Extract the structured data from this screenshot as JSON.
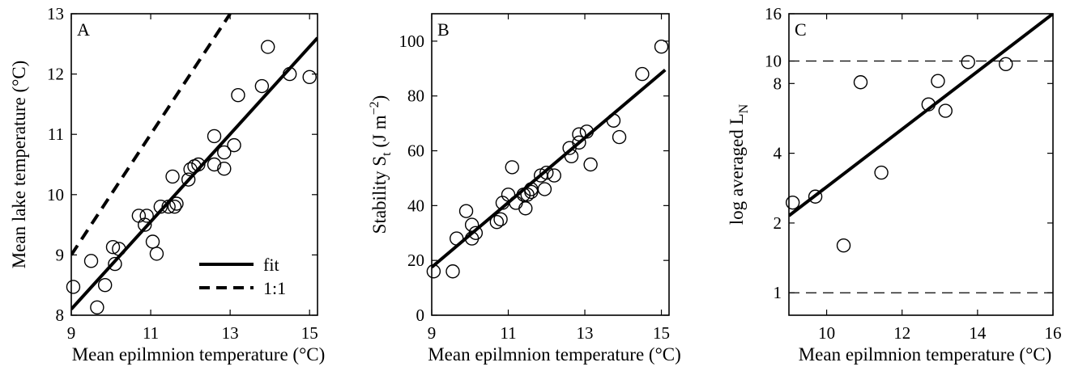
{
  "colors": {
    "ink": "#000000",
    "background": "#ffffff"
  },
  "chart_data": [
    {
      "panel": "A",
      "type": "scatter",
      "xlabel": "Mean epilmnion temperature (°C)",
      "ylabel": "Mean lake temperature (°C)",
      "xlim": [
        9,
        15.2
      ],
      "ylim": [
        8,
        13
      ],
      "xticks": [
        9,
        11,
        13,
        15
      ],
      "yticks": [
        8,
        9,
        10,
        11,
        12,
        13
      ],
      "grid": false,
      "legend": {
        "position": "bottom-right",
        "entries": [
          {
            "label": "fit",
            "style": "solid"
          },
          {
            "label": "1:1",
            "style": "dashed"
          }
        ]
      },
      "points": [
        [
          9.05,
          8.47
        ],
        [
          9.5,
          8.9
        ],
        [
          9.65,
          8.13
        ],
        [
          9.85,
          8.5
        ],
        [
          10.05,
          9.13
        ],
        [
          10.1,
          8.85
        ],
        [
          10.2,
          9.1
        ],
        [
          10.7,
          9.65
        ],
        [
          10.85,
          9.5
        ],
        [
          10.9,
          9.65
        ],
        [
          11.05,
          9.22
        ],
        [
          11.15,
          9.02
        ],
        [
          11.25,
          9.8
        ],
        [
          11.45,
          9.8
        ],
        [
          11.55,
          10.3
        ],
        [
          11.6,
          9.8
        ],
        [
          11.65,
          9.85
        ],
        [
          11.95,
          10.25
        ],
        [
          12.0,
          10.42
        ],
        [
          12.1,
          10.47
        ],
        [
          12.2,
          10.5
        ],
        [
          12.6,
          10.97
        ],
        [
          12.6,
          10.5
        ],
        [
          12.85,
          10.7
        ],
        [
          12.85,
          10.43
        ],
        [
          13.1,
          10.82
        ],
        [
          13.2,
          11.65
        ],
        [
          13.8,
          11.8
        ],
        [
          13.95,
          12.45
        ],
        [
          14.5,
          12.0
        ],
        [
          15.0,
          11.95
        ]
      ],
      "lines": [
        {
          "name": "fit",
          "style": "solid",
          "x": [
            9.0,
            15.2
          ],
          "y": [
            8.1,
            12.6
          ]
        },
        {
          "name": "1:1",
          "style": "dashed",
          "x": [
            9.0,
            13.0
          ],
          "y": [
            9.0,
            13.0
          ]
        }
      ]
    },
    {
      "panel": "B",
      "type": "scatter",
      "xlabel": "Mean epilmnion temperature (°C)",
      "ylabel_parts": {
        "main": "Stability S",
        "sub": "t",
        "unit_open": " (J m",
        "sup": "−2",
        "unit_close": ")"
      },
      "xlim": [
        9,
        15.2
      ],
      "ylim": [
        0,
        110
      ],
      "xticks": [
        9,
        11,
        13,
        15
      ],
      "yticks": [
        0,
        20,
        40,
        60,
        80,
        100
      ],
      "grid": false,
      "points": [
        [
          9.05,
          16
        ],
        [
          9.55,
          16
        ],
        [
          9.65,
          28
        ],
        [
          9.9,
          38
        ],
        [
          10.05,
          33
        ],
        [
          10.05,
          28
        ],
        [
          10.15,
          30
        ],
        [
          10.7,
          34
        ],
        [
          10.8,
          35
        ],
        [
          10.85,
          41
        ],
        [
          11.0,
          44
        ],
        [
          11.1,
          54
        ],
        [
          11.2,
          41
        ],
        [
          11.4,
          44
        ],
        [
          11.45,
          39
        ],
        [
          11.5,
          44
        ],
        [
          11.6,
          46
        ],
        [
          11.6,
          45
        ],
        [
          11.85,
          51
        ],
        [
          11.95,
          46
        ],
        [
          12.0,
          52
        ],
        [
          12.2,
          51
        ],
        [
          12.6,
          61
        ],
        [
          12.65,
          58
        ],
        [
          12.85,
          63
        ],
        [
          12.85,
          66
        ],
        [
          13.05,
          67
        ],
        [
          13.15,
          55
        ],
        [
          13.75,
          71
        ],
        [
          13.9,
          65
        ],
        [
          14.5,
          88
        ],
        [
          15.0,
          98
        ]
      ],
      "lines": [
        {
          "name": "fit",
          "style": "solid",
          "x": [
            9.0,
            15.1
          ],
          "y": [
            17.5,
            89.5
          ]
        }
      ]
    },
    {
      "panel": "C",
      "type": "scatter",
      "xlabel": "Mean epilmnion temperature (°C)",
      "ylabel_parts": {
        "main": "log averaged L",
        "sub": "N"
      },
      "xlim": [
        9,
        16
      ],
      "ylim": [
        0.8,
        16
      ],
      "y_scale": "log",
      "xticks": [
        10,
        12,
        14,
        16
      ],
      "yticks": [
        1,
        2,
        4,
        8,
        10,
        16
      ],
      "grid": false,
      "points": [
        [
          9.1,
          2.45
        ],
        [
          9.7,
          2.6
        ],
        [
          10.45,
          1.6
        ],
        [
          10.9,
          8.1
        ],
        [
          11.45,
          3.3
        ],
        [
          12.7,
          6.5
        ],
        [
          12.95,
          8.2
        ],
        [
          13.15,
          6.1
        ],
        [
          13.75,
          9.9
        ],
        [
          14.75,
          9.7
        ]
      ],
      "lines": [
        {
          "name": "fit",
          "style": "solid",
          "x": [
            9.0,
            16.0
          ],
          "y": [
            2.15,
            16.0
          ]
        },
        {
          "name": "reference-upper",
          "style": "dashed-thin",
          "x": [
            9.0,
            16.0
          ],
          "y": [
            10,
            10
          ]
        },
        {
          "name": "reference-lower",
          "style": "dashed-thin",
          "x": [
            9.0,
            16.0
          ],
          "y": [
            1,
            1
          ]
        }
      ]
    }
  ]
}
